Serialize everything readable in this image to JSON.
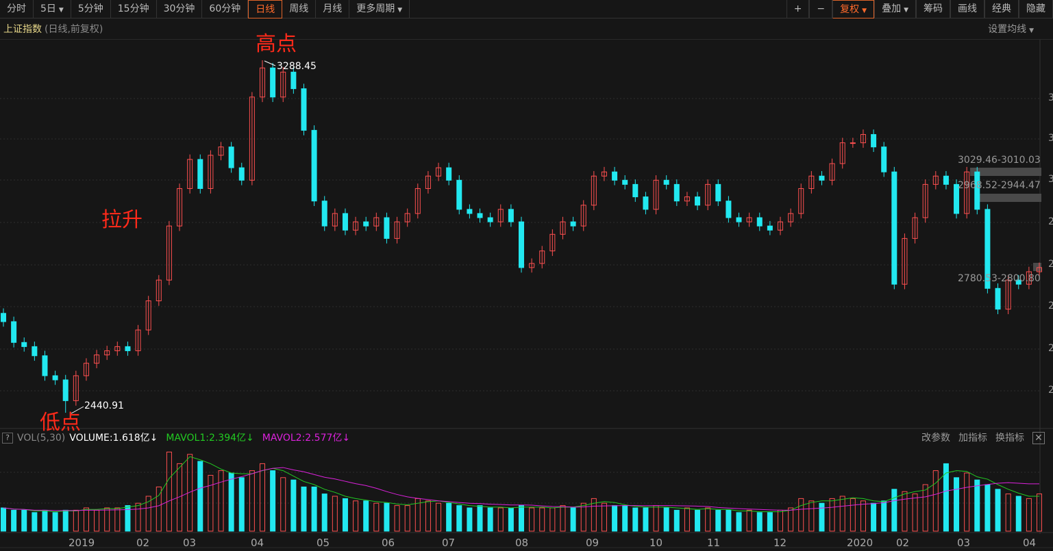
{
  "toolbar": {
    "periods": [
      {
        "label": "分时"
      },
      {
        "label": "5日",
        "caret": true
      },
      {
        "label": "5分钟"
      },
      {
        "label": "15分钟"
      },
      {
        "label": "30分钟"
      },
      {
        "label": "60分钟"
      },
      {
        "label": "日线",
        "active": true
      },
      {
        "label": "周线"
      },
      {
        "label": "月线"
      },
      {
        "label": "更多周期",
        "caret": true
      }
    ],
    "right": [
      {
        "label": "+"
      },
      {
        "label": "−"
      },
      {
        "label": "复权",
        "caret": true,
        "active": true
      },
      {
        "label": "叠加",
        "caret": true
      },
      {
        "label": "筹码"
      },
      {
        "label": "画线"
      },
      {
        "label": "经典"
      },
      {
        "label": "隐藏"
      }
    ]
  },
  "title": {
    "name": "上证指数",
    "sub": "(日线,前复权)",
    "ma_setting": "设置均线"
  },
  "annotations": {
    "high": "高点",
    "rise": "拉升",
    "low": "低点",
    "high_value": "3288.45",
    "low_value": "2440.91"
  },
  "ranges": [
    "3029.46-3010.03",
    "2968.52-2944.47",
    "2780.53-2800.80"
  ],
  "axis_labels": [
    "3",
    "3",
    "3",
    "2",
    "2",
    "2",
    "2",
    "2"
  ],
  "volume": {
    "help": "?",
    "indicator": "VOL(5,30)",
    "volume": "VOLUME:1.618亿↓",
    "mavol1": "MAVOL1:2.394亿↓",
    "mavol2": "MAVOL2:2.577亿↓",
    "buttons": [
      "改参数",
      "加指标",
      "换指标"
    ],
    "close": "✕"
  },
  "dates": [
    "2019",
    "02",
    "03",
    "04",
    "05",
    "06",
    "07",
    "08",
    "09",
    "10",
    "11",
    "12",
    "2020",
    "02",
    "03",
    "04"
  ],
  "colors": {
    "up": "#ff5050",
    "down": "#22e8f0",
    "mavol1": "#22cc22",
    "mavol2": "#dd22dd",
    "active": "#ff6a2b"
  },
  "chart_data": {
    "type": "candlestick",
    "high": 3288.45,
    "low": 2440.91,
    "close": [
      2660,
      2610,
      2600,
      2578,
      2530,
      2520,
      2470,
      2530,
      2560,
      2580,
      2590,
      2600,
      2590,
      2640,
      2710,
      2760,
      2890,
      2980,
      3050,
      2980,
      3060,
      3080,
      3030,
      3000,
      3200,
      3270,
      3200,
      3260,
      3220,
      3120,
      2950,
      2890,
      2920,
      2880,
      2900,
      2890,
      2910,
      2860,
      2900,
      2920,
      2980,
      3010,
      3030,
      3000,
      2930,
      2920,
      2910,
      2900,
      2930,
      2900,
      2790,
      2800,
      2830,
      2870,
      2900,
      2890,
      2940,
      3010,
      3020,
      3000,
      2990,
      2960,
      2930,
      3000,
      2990,
      2950,
      2960,
      2940,
      2990,
      2950,
      2910,
      2900,
      2910,
      2890,
      2880,
      2900,
      2920,
      2980,
      3010,
      3000,
      3040,
      3090,
      3090,
      3110,
      3080,
      3020,
      2750,
      2860,
      2910,
      2990,
      3010,
      2990,
      2920,
      3020,
      2930,
      2740,
      2690,
      2760,
      2750,
      2780,
      2790
    ],
    "volume": [
      1.0,
      0.9,
      0.9,
      0.8,
      0.9,
      0.8,
      0.9,
      0.9,
      1.0,
      0.9,
      1.0,
      1.0,
      1.1,
      1.2,
      1.5,
      1.9,
      3.4,
      2.9,
      3.3,
      3.0,
      2.4,
      2.6,
      2.5,
      2.3,
      2.6,
      2.9,
      2.6,
      2.3,
      2.2,
      1.9,
      1.9,
      1.6,
      1.5,
      1.4,
      1.3,
      1.3,
      1.2,
      1.2,
      1.1,
      1.1,
      1.4,
      1.3,
      1.2,
      1.2,
      1.1,
      1.0,
      1.1,
      1.0,
      1.0,
      1.0,
      1.1,
      1.0,
      1.0,
      1.0,
      1.1,
      1.0,
      1.2,
      1.4,
      1.2,
      1.1,
      1.1,
      1.0,
      1.0,
      1.1,
      1.0,
      0.9,
      1.0,
      0.9,
      1.0,
      0.9,
      0.9,
      0.8,
      0.9,
      0.8,
      0.8,
      0.9,
      1.0,
      1.4,
      1.3,
      1.2,
      1.4,
      1.5,
      1.4,
      1.3,
      1.2,
      1.3,
      1.8,
      1.7,
      1.6,
      2.0,
      2.6,
      2.9,
      2.3,
      2.5,
      2.2,
      2.0,
      1.8,
      1.6,
      1.5,
      1.4,
      1.6
    ],
    "volume_unit": "亿"
  }
}
